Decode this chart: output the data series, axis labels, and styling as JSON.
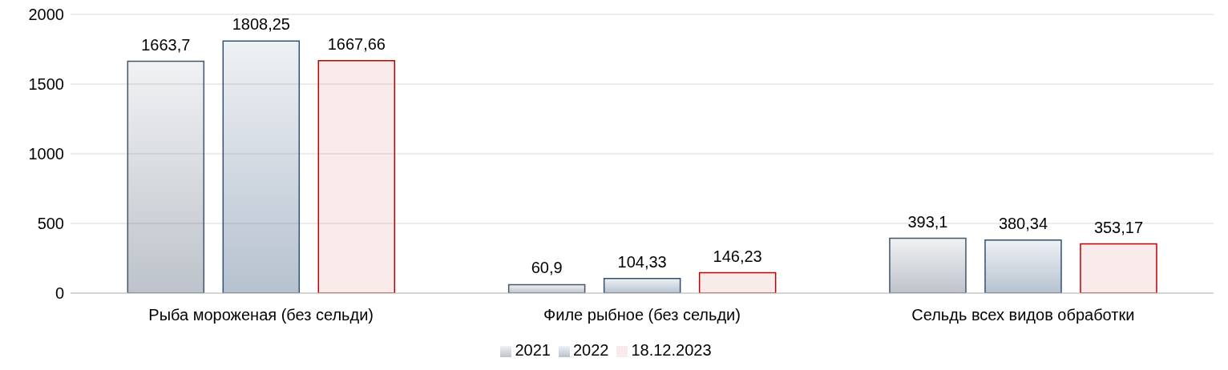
{
  "chart_data": {
    "type": "bar",
    "categories": [
      "Рыба мороженая (без сельди)",
      "Филе рыбное (без сельди)",
      "Сельдь всех видов обработки"
    ],
    "series": [
      {
        "name": "2021",
        "color": "#44546a",
        "values": [
          1663.7,
          60.9,
          393.1
        ],
        "value_labels": [
          "1663,7",
          "60,9",
          "393,1"
        ]
      },
      {
        "name": "2022",
        "color": "#2f5077",
        "values": [
          1808.25,
          104.33,
          380.34
        ],
        "value_labels": [
          "1808,25",
          "104,33",
          "380,34"
        ]
      },
      {
        "name": "18.12.2023",
        "color": "#c00000",
        "values": [
          1667.66,
          146.23,
          353.17
        ],
        "value_labels": [
          "1667,66",
          "146,23",
          "353,17"
        ]
      }
    ],
    "ylim": [
      0,
      2000
    ],
    "yticks": [
      0,
      500,
      1000,
      1500,
      2000
    ],
    "grid": "y",
    "legend": "bottom"
  }
}
